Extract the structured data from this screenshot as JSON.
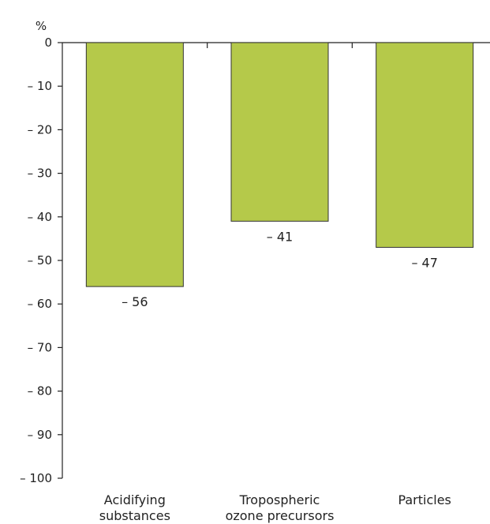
{
  "chart_data": {
    "type": "bar",
    "unit_label": "%",
    "categories": [
      [
        "Acidifying",
        "substances"
      ],
      [
        "Tropospheric",
        "ozone precursors"
      ],
      [
        "Particles"
      ]
    ],
    "values": [
      -56,
      -41,
      -47
    ],
    "value_labels": [
      "– 56",
      "– 41",
      "– 47"
    ],
    "ylim": [
      -100,
      0
    ],
    "yticks": [
      0,
      -10,
      -20,
      -30,
      -40,
      -50,
      -60,
      -70,
      -80,
      -90,
      -100
    ],
    "ytick_labels": [
      "0",
      "– 10",
      "– 20",
      "– 30",
      "– 40",
      "– 50",
      "– 60",
      "– 70",
      "– 80",
      "– 90",
      "– 100"
    ],
    "bar_color": "#b5c94a",
    "bar_edge_color": "#333333",
    "grid": false
  }
}
